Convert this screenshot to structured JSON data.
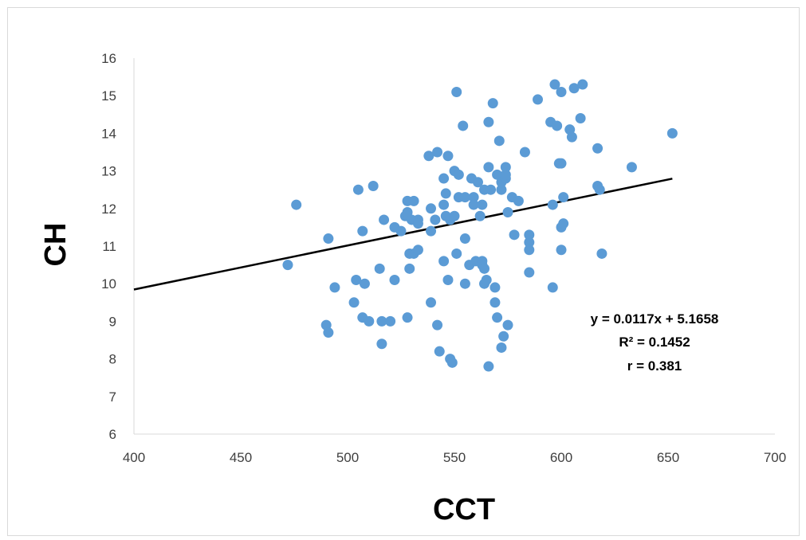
{
  "chart_data": {
    "type": "scatter",
    "xlabel": "CCT",
    "ylabel": "CH",
    "xlim": [
      400,
      700
    ],
    "ylim": [
      6,
      16
    ],
    "xticks": [
      400,
      450,
      500,
      550,
      600,
      650,
      700
    ],
    "yticks": [
      6,
      7,
      8,
      9,
      10,
      11,
      12,
      13,
      14,
      15,
      16
    ],
    "grid": false,
    "marker_color": "#5b9bd5",
    "trendline_color": "#000000",
    "trendline": {
      "slope": 0.0117,
      "intercept": 5.1658,
      "x_range": [
        400,
        652
      ]
    },
    "annotations": [
      "y = 0.0117x + 5.1658",
      "R² = 0.1452",
      "r = 0.381"
    ],
    "points": [
      [
        472,
        10.5
      ],
      [
        476,
        12.1
      ],
      [
        490,
        8.9
      ],
      [
        491,
        11.2
      ],
      [
        491,
        8.7
      ],
      [
        494,
        9.9
      ],
      [
        503,
        9.5
      ],
      [
        504,
        10.1
      ],
      [
        505,
        12.5
      ],
      [
        507,
        9.1
      ],
      [
        507,
        11.4
      ],
      [
        508,
        10.0
      ],
      [
        510,
        9.0
      ],
      [
        512,
        12.6
      ],
      [
        515,
        10.4
      ],
      [
        516,
        8.4
      ],
      [
        516,
        9.0
      ],
      [
        517,
        11.7
      ],
      [
        520,
        9.0
      ],
      [
        522,
        10.1
      ],
      [
        522,
        11.5
      ],
      [
        525,
        11.4
      ],
      [
        527,
        11.8
      ],
      [
        528,
        11.9
      ],
      [
        528,
        12.2
      ],
      [
        528,
        9.1
      ],
      [
        529,
        10.8
      ],
      [
        529,
        10.4
      ],
      [
        530,
        11.7
      ],
      [
        531,
        12.2
      ],
      [
        531,
        10.8
      ],
      [
        533,
        10.9
      ],
      [
        533,
        11.7
      ],
      [
        533,
        11.6
      ],
      [
        538,
        13.4
      ],
      [
        539,
        12.0
      ],
      [
        539,
        9.5
      ],
      [
        539,
        11.4
      ],
      [
        541,
        11.7
      ],
      [
        542,
        13.5
      ],
      [
        542,
        8.9
      ],
      [
        543,
        8.2
      ],
      [
        545,
        12.8
      ],
      [
        545,
        10.6
      ],
      [
        545,
        12.1
      ],
      [
        546,
        11.8
      ],
      [
        546,
        12.4
      ],
      [
        547,
        10.1
      ],
      [
        547,
        13.4
      ],
      [
        548,
        11.7
      ],
      [
        548,
        8.0
      ],
      [
        549,
        7.9
      ],
      [
        550,
        13.0
      ],
      [
        550,
        11.8
      ],
      [
        551,
        10.8
      ],
      [
        551,
        15.1
      ],
      [
        552,
        12.9
      ],
      [
        552,
        12.3
      ],
      [
        554,
        14.2
      ],
      [
        555,
        12.3
      ],
      [
        555,
        10.0
      ],
      [
        555,
        11.2
      ],
      [
        557,
        10.5
      ],
      [
        558,
        12.8
      ],
      [
        559,
        12.3
      ],
      [
        559,
        12.1
      ],
      [
        560,
        10.6
      ],
      [
        561,
        12.7
      ],
      [
        562,
        11.8
      ],
      [
        563,
        12.1
      ],
      [
        563,
        10.6
      ],
      [
        563,
        10.5
      ],
      [
        564,
        12.5
      ],
      [
        564,
        10.4
      ],
      [
        564,
        10.0
      ],
      [
        565,
        10.1
      ],
      [
        566,
        14.3
      ],
      [
        566,
        7.8
      ],
      [
        566,
        13.1
      ],
      [
        567,
        12.5
      ],
      [
        568,
        14.8
      ],
      [
        569,
        9.9
      ],
      [
        569,
        9.5
      ],
      [
        570,
        9.1
      ],
      [
        570,
        12.9
      ],
      [
        571,
        13.8
      ],
      [
        572,
        12.5
      ],
      [
        572,
        8.3
      ],
      [
        572,
        12.7
      ],
      [
        573,
        8.6
      ],
      [
        574,
        13.1
      ],
      [
        574,
        12.8
      ],
      [
        574,
        12.9
      ],
      [
        575,
        11.9
      ],
      [
        575,
        8.9
      ],
      [
        577,
        12.3
      ],
      [
        578,
        11.3
      ],
      [
        580,
        12.2
      ],
      [
        583,
        13.5
      ],
      [
        585,
        11.3
      ],
      [
        585,
        11.1
      ],
      [
        585,
        10.9
      ],
      [
        585,
        10.3
      ],
      [
        589,
        14.9
      ],
      [
        595,
        14.3
      ],
      [
        596,
        12.1
      ],
      [
        596,
        9.9
      ],
      [
        597,
        15.3
      ],
      [
        598,
        14.2
      ],
      [
        599,
        13.2
      ],
      [
        600,
        13.2
      ],
      [
        600,
        15.1
      ],
      [
        600,
        11.5
      ],
      [
        600,
        10.9
      ],
      [
        601,
        11.6
      ],
      [
        601,
        12.3
      ],
      [
        604,
        14.1
      ],
      [
        605,
        13.9
      ],
      [
        606,
        15.2
      ],
      [
        609,
        14.4
      ],
      [
        610,
        15.3
      ],
      [
        617,
        13.6
      ],
      [
        617,
        12.6
      ],
      [
        618,
        12.5
      ],
      [
        619,
        10.8
      ],
      [
        633,
        13.1
      ],
      [
        652,
        14.0
      ]
    ]
  }
}
